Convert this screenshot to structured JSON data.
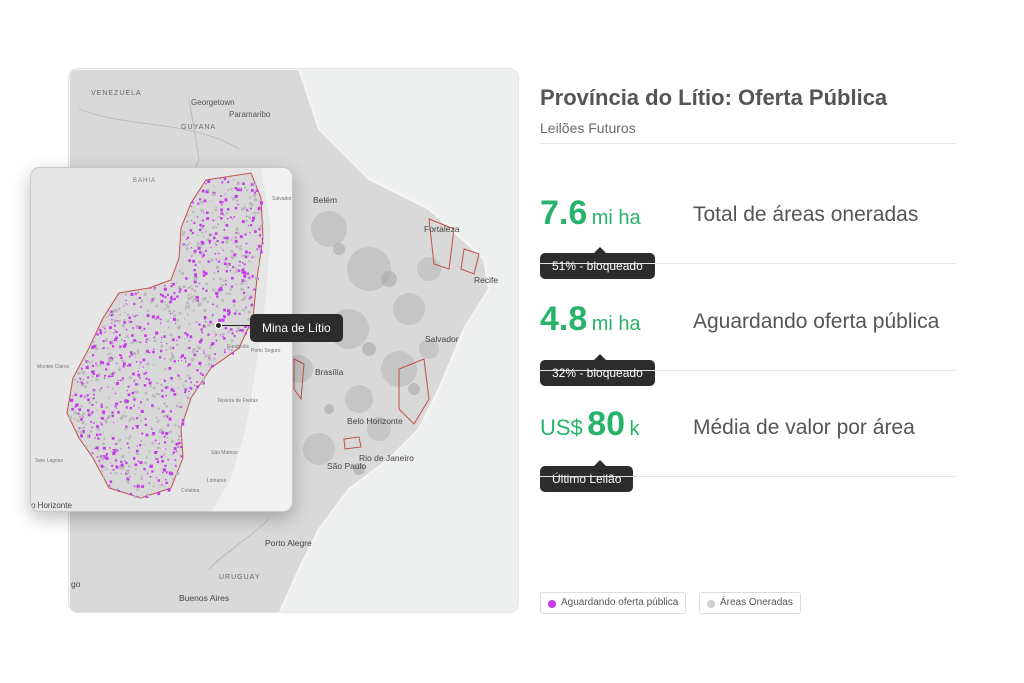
{
  "header": {
    "title": "Província do Lítio: Oferta Pública",
    "subtitle": "Leilões Futuros"
  },
  "kpis": [
    {
      "value": "7.6",
      "prefix": "",
      "unit": "mi ha",
      "label": "Total de áreas oneradas",
      "tag": "51% - bloqueado"
    },
    {
      "value": "4.8",
      "prefix": "",
      "unit": "mi ha",
      "label": "Aguardando oferta pública",
      "tag": "32% - bloqueado"
    },
    {
      "value": "80",
      "prefix": "US$",
      "unit": "k",
      "label": "Média de valor por área",
      "tag": "Último Leilão"
    }
  ],
  "map": {
    "labels": {
      "venezuela": "VENEZUELA",
      "georgetown": "Georgetown",
      "paramaribo": "Paramaribo",
      "guyana": "GUYANA",
      "belem": "Belém",
      "fortaleza": "Fortaleza",
      "recife": "Recife",
      "salvador": "Salvador",
      "brasilia": "Brasília",
      "belo_horizonte": "Belo Horizonte",
      "rio": "Rio de Janeiro",
      "sao_paulo": "São Paulo",
      "porto_alegre": "Porto Alegre",
      "uruguay": "URUGUAY",
      "buenos_aires": "Buenos Aires",
      "go": "go"
    },
    "inset": {
      "bahia": "BAHIA",
      "callout": "Mina de Lítio",
      "horizonte": "o Horizonte",
      "montes_claros": "Montes Claros",
      "teofilo": "Teófilo Otoni",
      "salvador_small": "Salvador",
      "governador": "Governador Valadares",
      "porto_seguro": "Porto Seguro",
      "lagoas": "Sete Lagoas",
      "colatina": "Colatina",
      "linhares": "Linhares",
      "sao_mateus": "São Mateus",
      "teixeira": "Teixeira de Freitas",
      "eunapolis": "Eunápolis",
      "vitoria": "Vitória da Conquista",
      "nanuque": "Nanuque"
    }
  },
  "legend": [
    {
      "label": "Aguardando oferta pública",
      "color": "#c53de8"
    },
    {
      "label": "Áreas Oneradas",
      "color": "#cfcfcf"
    }
  ],
  "colors": {
    "accent": "#27b36a",
    "purple": "#c53de8",
    "boundary": "#c0504d"
  }
}
